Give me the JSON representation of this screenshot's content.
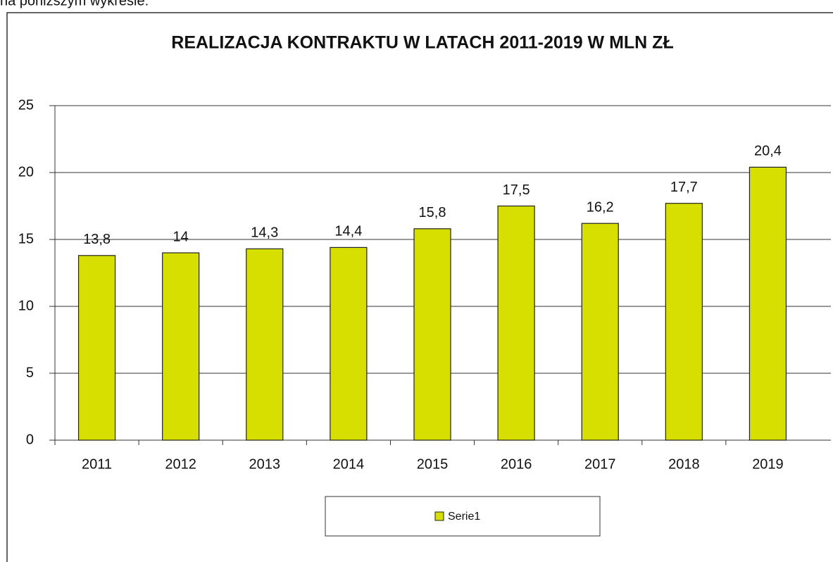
{
  "header_text": "na poniższym wykresie:",
  "chart_data": {
    "type": "bar",
    "title": "REALIZACJA KONTRAKTU W LATACH 2011-2019 W MLN ZŁ",
    "categories": [
      "2011",
      "2012",
      "2013",
      "2014",
      "2015",
      "2016",
      "2017",
      "2018",
      "2019"
    ],
    "series": [
      {
        "name": "Serie1",
        "color": "#d6df00",
        "values": [
          13.8,
          14,
          14.3,
          14.4,
          15.8,
          17.5,
          16.2,
          17.7,
          20.4
        ],
        "value_labels": [
          "13,8",
          "14",
          "14,3",
          "14,4",
          "15,8",
          "17,5",
          "16,2",
          "17,7",
          "20,4"
        ]
      }
    ],
    "ylim": [
      0,
      25
    ],
    "yticks": [
      0,
      5,
      10,
      15,
      20,
      25
    ],
    "grid": true,
    "legend": "bottom"
  }
}
